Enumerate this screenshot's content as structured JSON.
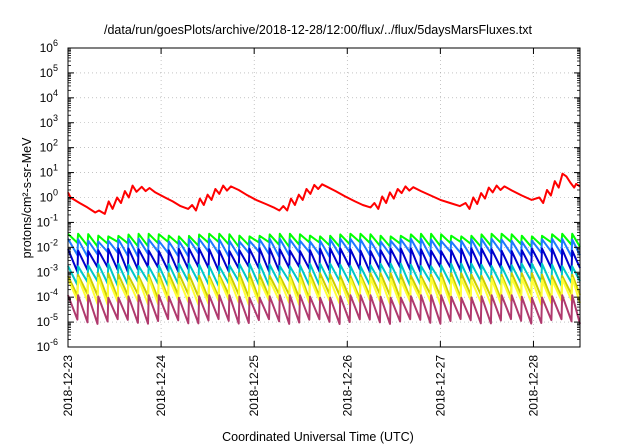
{
  "chart_data": {
    "type": "line",
    "title": "/data/run/goesPlots/archive/2018-12-28/12:00/flux/../flux/5daysMarsFluxes.txt",
    "xlabel": "Coordinated Universal Time (UTC)",
    "ylabel": "protons/cm²-s-sr-MeV",
    "y_scale": "log",
    "ylim": [
      1e-06,
      1000000.0
    ],
    "y_ticks": [
      {
        "value": 1e-06,
        "base": "10",
        "exp": "-6"
      },
      {
        "value": 1e-05,
        "base": "10",
        "exp": "-5"
      },
      {
        "value": 0.0001,
        "base": "10",
        "exp": "-4"
      },
      {
        "value": 0.001,
        "base": "10",
        "exp": "-3"
      },
      {
        "value": 0.01,
        "base": "10",
        "exp": "-2"
      },
      {
        "value": 0.1,
        "base": "10",
        "exp": "-1"
      },
      {
        "value": 1,
        "base": "10",
        "exp": "0"
      },
      {
        "value": 10,
        "base": "10",
        "exp": "1"
      },
      {
        "value": 100,
        "base": "10",
        "exp": "2"
      },
      {
        "value": 1000,
        "base": "10",
        "exp": "3"
      },
      {
        "value": 10000,
        "base": "10",
        "exp": "4"
      },
      {
        "value": 100000,
        "base": "10",
        "exp": "5"
      },
      {
        "value": 1000000,
        "base": "10",
        "exp": "6"
      }
    ],
    "xlim": [
      "2018-12-23T00:00",
      "2018-12-28T12:00"
    ],
    "x_ticks": [
      "2018-12-23",
      "2018-12-24",
      "2018-12-25",
      "2018-12-26",
      "2018-12-27",
      "2018-12-28"
    ],
    "grid": true,
    "series": [
      {
        "color": "#ff0000",
        "values": [
          [
            "2018-12-23T00:00",
            1.6
          ],
          [
            "2018-12-23T00:40",
            1.0
          ],
          [
            "2018-12-23T03:00",
            0.6
          ],
          [
            "2018-12-23T05:00",
            0.4
          ],
          [
            "2018-12-23T07:00",
            0.25
          ],
          [
            "2018-12-23T08:00",
            0.3
          ],
          [
            "2018-12-23T09:30",
            0.22
          ],
          [
            "2018-12-23T10:30",
            0.7
          ],
          [
            "2018-12-23T11:30",
            0.35
          ],
          [
            "2018-12-23T12:40",
            1.0
          ],
          [
            "2018-12-23T13:40",
            0.6
          ],
          [
            "2018-12-23T14:40",
            1.8
          ],
          [
            "2018-12-23T15:40",
            1.0
          ],
          [
            "2018-12-23T16:40",
            3.0
          ],
          [
            "2018-12-23T17:40",
            1.7
          ],
          [
            "2018-12-23T19:00",
            2.7
          ],
          [
            "2018-12-23T20:00",
            1.8
          ],
          [
            "2018-12-23T21:00",
            2.4
          ],
          [
            "2018-12-23T22:30",
            1.6
          ],
          [
            "2018-12-24T01:00",
            1.0
          ],
          [
            "2018-12-24T03:00",
            0.7
          ],
          [
            "2018-12-24T05:00",
            0.45
          ],
          [
            "2018-12-24T07:00",
            0.35
          ],
          [
            "2018-12-24T08:00",
            0.5
          ],
          [
            "2018-12-24T09:00",
            0.3
          ],
          [
            "2018-12-24T10:00",
            0.9
          ],
          [
            "2018-12-24T11:00",
            0.5
          ],
          [
            "2018-12-24T12:00",
            1.3
          ],
          [
            "2018-12-24T13:00",
            0.8
          ],
          [
            "2018-12-24T14:00",
            2.2
          ],
          [
            "2018-12-24T15:00",
            1.4
          ],
          [
            "2018-12-24T16:00",
            3.0
          ],
          [
            "2018-12-24T17:00",
            1.9
          ],
          [
            "2018-12-24T18:00",
            2.8
          ],
          [
            "2018-12-24T20:00",
            2.0
          ],
          [
            "2018-12-24T22:00",
            1.3
          ],
          [
            "2018-12-25T00:30",
            0.8
          ],
          [
            "2018-12-25T03:00",
            0.55
          ],
          [
            "2018-12-25T05:00",
            0.4
          ],
          [
            "2018-12-25T06:30",
            0.3
          ],
          [
            "2018-12-25T07:30",
            0.45
          ],
          [
            "2018-12-25T08:30",
            0.3
          ],
          [
            "2018-12-25T09:30",
            0.9
          ],
          [
            "2018-12-25T10:30",
            0.5
          ],
          [
            "2018-12-25T11:30",
            1.3
          ],
          [
            "2018-12-25T12:30",
            0.8
          ],
          [
            "2018-12-25T13:30",
            2.2
          ],
          [
            "2018-12-25T14:30",
            1.4
          ],
          [
            "2018-12-25T15:30",
            3.2
          ],
          [
            "2018-12-25T16:30",
            2.2
          ],
          [
            "2018-12-25T17:30",
            3.4
          ],
          [
            "2018-12-25T19:00",
            2.6
          ],
          [
            "2018-12-25T21:00",
            1.8
          ],
          [
            "2018-12-25T23:30",
            1.1
          ],
          [
            "2018-12-26T02:00",
            0.7
          ],
          [
            "2018-12-26T04:00",
            0.5
          ],
          [
            "2018-12-26T06:00",
            0.4
          ],
          [
            "2018-12-26T07:00",
            0.6
          ],
          [
            "2018-12-26T08:00",
            0.35
          ],
          [
            "2018-12-26T09:00",
            1.1
          ],
          [
            "2018-12-26T10:00",
            0.6
          ],
          [
            "2018-12-26T11:00",
            1.6
          ],
          [
            "2018-12-26T12:00",
            0.9
          ],
          [
            "2018-12-26T13:00",
            2.2
          ],
          [
            "2018-12-26T14:00",
            1.5
          ],
          [
            "2018-12-26T15:00",
            2.8
          ],
          [
            "2018-12-26T16:00",
            1.9
          ],
          [
            "2018-12-26T17:00",
            2.6
          ],
          [
            "2018-12-26T19:00",
            1.8
          ],
          [
            "2018-12-26T21:30",
            1.2
          ],
          [
            "2018-12-27T00:00",
            0.8
          ],
          [
            "2018-12-27T02:30",
            0.6
          ],
          [
            "2018-12-27T05:00",
            0.45
          ],
          [
            "2018-12-27T06:30",
            0.6
          ],
          [
            "2018-12-27T07:30",
            0.35
          ],
          [
            "2018-12-27T08:30",
            1.0
          ],
          [
            "2018-12-27T09:30",
            0.55
          ],
          [
            "2018-12-27T10:30",
            1.5
          ],
          [
            "2018-12-27T11:30",
            0.9
          ],
          [
            "2018-12-27T12:30",
            2.5
          ],
          [
            "2018-12-27T13:30",
            1.6
          ],
          [
            "2018-12-27T14:30",
            3.0
          ],
          [
            "2018-12-27T15:30",
            2.0
          ],
          [
            "2018-12-27T16:30",
            2.8
          ],
          [
            "2018-12-27T18:30",
            1.9
          ],
          [
            "2018-12-27T21:00",
            1.2
          ],
          [
            "2018-12-27T23:30",
            0.8
          ],
          [
            "2018-12-28T01:30",
            1.0
          ],
          [
            "2018-12-28T02:30",
            0.6
          ],
          [
            "2018-12-28T03:30",
            2.0
          ],
          [
            "2018-12-28T04:30",
            1.2
          ],
          [
            "2018-12-28T05:30",
            4.5
          ],
          [
            "2018-12-28T06:30",
            2.5
          ],
          [
            "2018-12-28T07:30",
            9.0
          ],
          [
            "2018-12-28T08:30",
            7.0
          ],
          [
            "2018-12-28T09:30",
            4.0
          ],
          [
            "2018-12-28T10:30",
            2.5
          ],
          [
            "2018-12-28T11:00",
            3.5
          ],
          [
            "2018-12-28T12:00",
            2.8
          ]
        ]
      },
      {
        "color": "#00ff00",
        "band": [
          0.015,
          0.035
        ],
        "period_hours": 2.6
      },
      {
        "color": "#1e7bff",
        "band": [
          0.006,
          0.022
        ],
        "period_hours": 2.6
      },
      {
        "color": "#0000cc",
        "band": [
          0.0015,
          0.009
        ],
        "period_hours": 2.6
      },
      {
        "color": "#00c8c8",
        "band": [
          0.0004,
          0.0022
        ],
        "period_hours": 2.6
      },
      {
        "color": "#cccc00",
        "band": [
          0.00012,
          0.0009
        ],
        "period_hours": 2.6
      },
      {
        "color": "#ffff33",
        "band": [
          7e-05,
          0.0006
        ],
        "period_hours": 2.6
      },
      {
        "color": "#b03a6e",
        "band": [
          1.2e-05,
          0.00012
        ],
        "period_hours": 2.6
      }
    ]
  }
}
